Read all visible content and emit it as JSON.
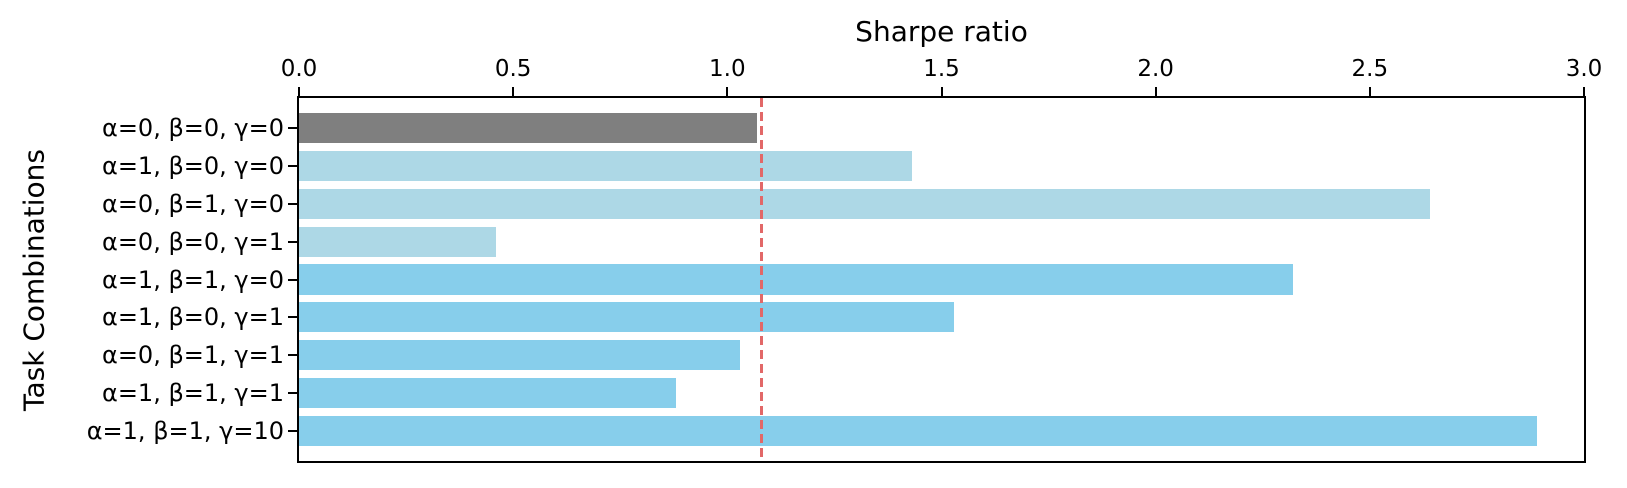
{
  "figure": {
    "background": "#ffffff",
    "spine_color": "#000000",
    "text_color": "#000000"
  },
  "chart_data": {
    "type": "bar",
    "orientation": "horizontal",
    "title": "",
    "xlabel": "Sharpe ratio",
    "ylabel": "Task Combinations",
    "categories": [
      "α=0, β=0, γ=0",
      "α=1, β=0, γ=0",
      "α=0, β=1, γ=0",
      "α=0, β=0, γ=1",
      "α=1, β=1, γ=0",
      "α=1, β=0, γ=1",
      "α=0, β=1, γ=1",
      "α=1, β=1, γ=1",
      "α=1, β=1, γ=10"
    ],
    "values": [
      1.07,
      1.43,
      2.64,
      0.46,
      2.32,
      1.53,
      1.03,
      0.88,
      2.89
    ],
    "bar_colors": [
      "#7f7f7f",
      "#add8e6",
      "#add8e6",
      "#add8e6",
      "#87ceeb",
      "#87ceeb",
      "#87ceeb",
      "#87ceeb",
      "#87ceeb"
    ],
    "reference_line": {
      "value": 1.08,
      "color": "#e26868",
      "style": "dashed"
    },
    "xlim": [
      0,
      3.0
    ],
    "xticks": [
      0.0,
      0.5,
      1.0,
      1.5,
      2.0,
      2.5,
      3.0
    ],
    "xtick_labels": [
      "0.0",
      "0.5",
      "1.0",
      "1.5",
      "2.0",
      "2.5",
      "3.0"
    ],
    "x_axis_position": "top",
    "grid": false,
    "legend": null
  }
}
